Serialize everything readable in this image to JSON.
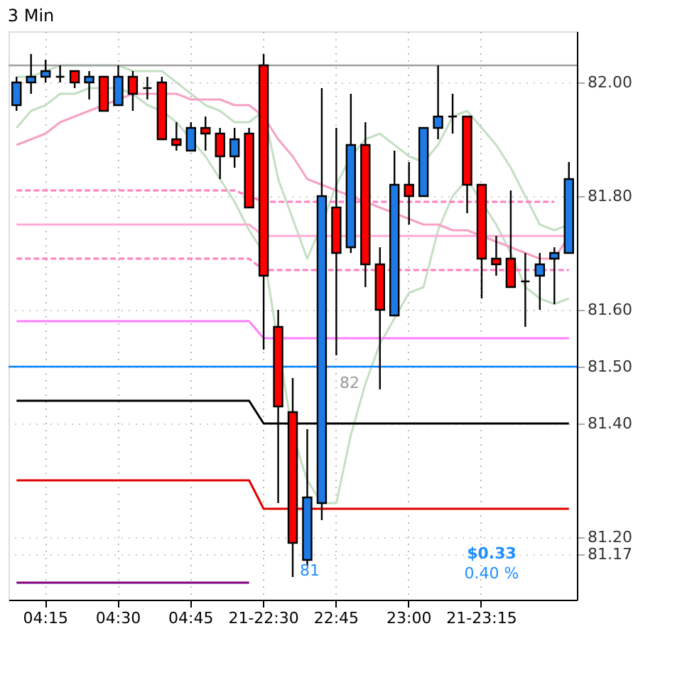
{
  "chart_data": {
    "type": "candlestick",
    "title": "3 Min",
    "categories": [
      null,
      null,
      "04:15",
      null,
      null,
      null,
      null,
      "04:30",
      null,
      null,
      null,
      null,
      "04:45",
      null,
      null,
      null,
      null,
      "21-22:30",
      null,
      null,
      null,
      null,
      "22:45",
      null,
      null,
      null,
      null,
      "23:00",
      null,
      null,
      null,
      null,
      "21-23:15",
      null,
      null,
      null,
      null,
      null,
      null
    ],
    "ohlc": [
      [
        81.96,
        82.01,
        81.95,
        82.0
      ],
      [
        82.0,
        82.05,
        81.98,
        82.01
      ],
      [
        82.01,
        82.04,
        82.0,
        82.02
      ],
      [
        82.01,
        82.03,
        82.0,
        82.01
      ],
      [
        82.02,
        82.02,
        81.99,
        82.0
      ],
      [
        82.0,
        82.02,
        81.97,
        82.01
      ],
      [
        82.01,
        82.01,
        81.95,
        81.95
      ],
      [
        81.96,
        82.03,
        81.96,
        82.01
      ],
      [
        82.01,
        82.02,
        81.95,
        81.98
      ],
      [
        81.99,
        82.01,
        81.97,
        81.99
      ],
      [
        82.0,
        82.01,
        81.9,
        81.9
      ],
      [
        81.9,
        81.93,
        81.88,
        81.89
      ],
      [
        81.88,
        81.93,
        81.88,
        81.92
      ],
      [
        81.92,
        81.94,
        81.88,
        81.91
      ],
      [
        81.91,
        81.92,
        81.83,
        81.87
      ],
      [
        81.87,
        81.92,
        81.85,
        81.9
      ],
      [
        81.91,
        81.92,
        81.78,
        81.78
      ],
      [
        82.03,
        82.05,
        81.53,
        81.66
      ],
      [
        81.57,
        81.6,
        81.26,
        81.43
      ],
      [
        81.42,
        81.48,
        81.13,
        81.19
      ],
      [
        81.16,
        81.39,
        81.15,
        81.27
      ],
      [
        81.26,
        81.99,
        81.23,
        81.8
      ],
      [
        81.78,
        81.92,
        81.52,
        81.7
      ],
      [
        81.71,
        81.98,
        81.7,
        81.89
      ],
      [
        81.89,
        81.93,
        81.64,
        81.68
      ],
      [
        81.68,
        81.71,
        81.46,
        81.6
      ],
      [
        81.59,
        81.88,
        81.59,
        81.82
      ],
      [
        81.82,
        81.86,
        81.75,
        81.8
      ],
      [
        81.8,
        81.92,
        81.8,
        81.92
      ],
      [
        81.92,
        82.03,
        81.9,
        81.94
      ],
      [
        81.94,
        81.98,
        81.91,
        81.94
      ],
      [
        81.94,
        81.94,
        81.77,
        81.82
      ],
      [
        81.82,
        81.82,
        81.62,
        81.69
      ],
      [
        81.69,
        81.73,
        81.66,
        81.68
      ],
      [
        81.69,
        81.81,
        81.64,
        81.64
      ],
      [
        81.65,
        81.7,
        81.57,
        81.65
      ],
      [
        81.66,
        81.7,
        81.6,
        81.68
      ],
      [
        81.69,
        81.71,
        81.61,
        81.7
      ],
      [
        81.7,
        81.86,
        81.7,
        81.83
      ]
    ],
    "colors": [
      "#1e7be6",
      "#1e7be6",
      "#1e7be6",
      "#000000",
      "#ff0000",
      "#1e7be6",
      "#ff0000",
      "#1e7be6",
      "#ff0000",
      "#000000",
      "#ff0000",
      "#ff0000",
      "#1e7be6",
      "#ff0000",
      "#ff0000",
      "#1e7be6",
      "#ff0000",
      "#ff0000",
      "#ff0000",
      "#ff0000",
      "#1e7be6",
      "#1e7be6",
      "#ff0000",
      "#1e7be6",
      "#ff0000",
      "#ff0000",
      "#1e7be6",
      "#ff0000",
      "#1e7be6",
      "#1e7be6",
      "#000000",
      "#ff0000",
      "#ff0000",
      "#ff0000",
      "#ff0000",
      "#000000",
      "#1e7be6",
      "#1e7be6",
      "#1e7be6"
    ],
    "series": [
      {
        "type": "line",
        "color": "#c4dfc4",
        "values": [
          82.01,
          82.01,
          82.02,
          82.03,
          82.03,
          82.03,
          82.03,
          82.03,
          82.02,
          82.02,
          82.02,
          82.0,
          81.98,
          81.96,
          81.95,
          81.93,
          81.93,
          81.95,
          81.83,
          81.76,
          81.69,
          81.75,
          81.82,
          81.87,
          81.9,
          81.91,
          81.89,
          81.87,
          81.86,
          81.89,
          81.94,
          81.95,
          81.92,
          81.89,
          81.85,
          81.8,
          81.75,
          81.74,
          81.75
        ]
      },
      {
        "type": "line",
        "color": "#c4dfc4",
        "values": [
          81.92,
          81.95,
          81.96,
          81.98,
          81.98,
          81.99,
          81.99,
          81.99,
          81.98,
          81.96,
          81.95,
          81.93,
          81.9,
          81.87,
          81.83,
          81.79,
          81.74,
          81.7,
          null,
          81.38,
          81.3,
          81.26,
          81.26,
          81.38,
          81.47,
          81.54,
          null,
          81.63,
          81.64,
          81.74,
          81.8,
          81.83,
          81.79,
          81.75,
          81.7,
          81.64,
          81.62,
          81.61,
          81.62
        ]
      },
      {
        "type": "line",
        "color": "#f7a1c4",
        "values": [
          81.89,
          81.9,
          81.91,
          81.93,
          81.94,
          81.95,
          81.96,
          81.97,
          81.98,
          81.98,
          81.98,
          81.98,
          81.97,
          81.97,
          81.97,
          81.96,
          81.96,
          81.94,
          81.9,
          81.87,
          81.83,
          81.82,
          81.81,
          81.8,
          81.79,
          81.78,
          81.77,
          81.76,
          81.75,
          81.75,
          81.74,
          81.74,
          81.73,
          81.72,
          81.71,
          81.7,
          81.69,
          81.69,
          81.73
        ]
      },
      {
        "type": "line",
        "color": "#ff7fbf",
        "line_style": "dashed",
        "values": [
          81.81,
          81.81,
          81.81,
          81.81,
          81.81,
          81.81,
          81.81,
          81.81,
          81.81,
          81.81,
          81.81,
          81.81,
          81.81,
          81.81,
          81.81,
          81.81,
          null,
          81.79,
          81.79,
          81.79,
          81.79,
          81.79,
          81.79,
          81.79,
          81.79,
          81.79,
          null,
          81.79,
          81.79,
          81.79,
          81.79,
          81.79,
          81.79,
          81.79,
          81.79,
          81.79,
          81.79,
          81.79,
          null
        ]
      },
      {
        "type": "line",
        "color": "#ffaad4",
        "values": [
          81.75,
          81.75,
          81.75,
          81.75,
          81.75,
          81.75,
          81.75,
          81.75,
          81.75,
          81.75,
          81.75,
          81.75,
          81.75,
          81.75,
          81.75,
          81.75,
          81.75,
          81.73,
          81.73,
          81.73,
          81.73,
          81.73,
          81.73,
          81.73,
          81.73,
          81.73,
          81.73,
          81.73,
          81.73,
          81.73,
          81.73,
          81.73,
          81.73,
          81.73,
          81.73,
          81.73,
          81.73,
          81.73,
          81.73
        ]
      },
      {
        "type": "line",
        "color": "#ff7fbf",
        "line_style": "dashed",
        "values": [
          81.69,
          81.69,
          81.69,
          81.69,
          81.69,
          81.69,
          81.69,
          81.69,
          81.69,
          81.69,
          81.69,
          81.69,
          81.69,
          81.69,
          81.69,
          81.69,
          81.69,
          81.67,
          81.67,
          81.67,
          81.67,
          81.67,
          81.67,
          81.67,
          81.67,
          81.67,
          81.67,
          81.67,
          81.67,
          81.67,
          81.67,
          81.67,
          81.67,
          81.67,
          81.67,
          81.67,
          81.67,
          81.67,
          81.67
        ]
      },
      {
        "type": "line",
        "color": "#ff80ff",
        "values": [
          81.58,
          81.58,
          81.58,
          81.58,
          81.58,
          81.58,
          81.58,
          81.58,
          81.58,
          81.58,
          81.58,
          81.58,
          81.58,
          81.58,
          81.58,
          81.58,
          81.58,
          81.55,
          81.55,
          81.55,
          81.55,
          81.55,
          81.55,
          81.55,
          81.55,
          81.55,
          81.55,
          81.55,
          81.55,
          81.55,
          81.55,
          81.55,
          81.55,
          81.55,
          81.55,
          81.55,
          81.55,
          81.55,
          81.55
        ]
      },
      {
        "type": "line",
        "color": "#000000",
        "values": [
          81.44,
          81.44,
          81.44,
          81.44,
          81.44,
          81.44,
          81.44,
          81.44,
          81.44,
          81.44,
          81.44,
          81.44,
          81.44,
          81.44,
          81.44,
          81.44,
          81.44,
          81.4,
          81.4,
          81.4,
          81.4,
          81.4,
          81.4,
          81.4,
          81.4,
          81.4,
          81.4,
          81.4,
          81.4,
          81.4,
          81.4,
          81.4,
          81.4,
          81.4,
          81.4,
          81.4,
          81.4,
          81.4,
          81.4
        ]
      },
      {
        "type": "line",
        "color": "#e00000",
        "values": [
          81.3,
          81.3,
          81.3,
          81.3,
          81.3,
          81.3,
          81.3,
          81.3,
          81.3,
          81.3,
          81.3,
          81.3,
          81.3,
          81.3,
          81.3,
          81.3,
          81.3,
          81.25,
          81.25,
          81.25,
          81.25,
          81.25,
          81.25,
          81.25,
          81.25,
          81.25,
          81.25,
          81.25,
          81.25,
          81.25,
          81.25,
          81.25,
          81.25,
          81.25,
          81.25,
          81.25,
          81.25,
          81.25,
          81.25
        ]
      },
      {
        "type": "line",
        "color": "#800080",
        "values": [
          81.12,
          81.12,
          81.12,
          81.12,
          81.12,
          81.12,
          81.12,
          81.12,
          81.12,
          81.12,
          81.12,
          81.12,
          81.12,
          81.12,
          81.12,
          81.12,
          81.12,
          null,
          null,
          null,
          null,
          null,
          null,
          null,
          null,
          null,
          null,
          null,
          null,
          null,
          null,
          null,
          null,
          null,
          null,
          null,
          null,
          null,
          null
        ]
      }
    ],
    "ref_lines": [
      {
        "axis": "y",
        "value": 82.03,
        "color": "#a0a0a0"
      },
      {
        "axis": "y",
        "value": 81.5,
        "color": "#0080ff"
      }
    ],
    "annotations": [
      "82",
      "81",
      "$0.33",
      "0.40 %"
    ],
    "ylim": [
      81.09,
      82.09
    ],
    "yticks": [
      {
        "value": 81.17,
        "label": "81.17"
      },
      {
        "value": 81.2,
        "label": "81.20"
      },
      {
        "value": 81.4,
        "label": "81.40"
      },
      {
        "value": 81.5,
        "label": "81.50"
      },
      {
        "value": 81.6,
        "label": "81.60"
      },
      {
        "value": 81.8,
        "label": "81.80"
      },
      {
        "value": 82.0,
        "label": "82.00"
      }
    ],
    "grid": true
  }
}
